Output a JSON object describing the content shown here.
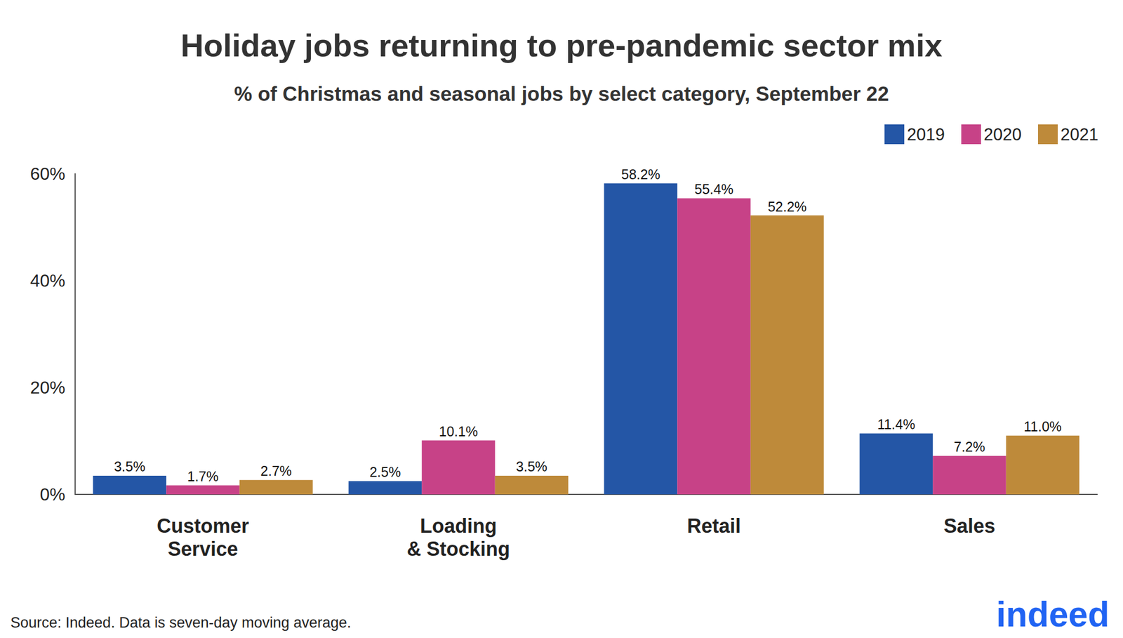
{
  "chart_data": {
    "type": "bar",
    "title": "Holiday jobs returning to pre-pandemic sector mix",
    "subtitle": "% of Christmas and seasonal jobs by select category, September 22",
    "source": "Source: Indeed. Data is seven-day moving average.",
    "logo": "indeed",
    "categories": [
      "Customer\nService",
      "Loading\n& Stocking",
      "Retail",
      "Sales"
    ],
    "series": [
      {
        "name": "2019",
        "color": "#2456a6",
        "values": [
          3.5,
          2.5,
          58.2,
          11.4
        ],
        "value_labels": [
          "3.5%",
          "2.5%",
          "58.2%",
          "11.4%"
        ]
      },
      {
        "name": "2020",
        "color": "#c74287",
        "values": [
          1.7,
          10.1,
          55.4,
          7.2
        ],
        "value_labels": [
          "1.7%",
          "10.1%",
          "55.4%",
          "7.2%"
        ]
      },
      {
        "name": "2021",
        "color": "#be8a3a",
        "values": [
          2.7,
          3.5,
          52.2,
          11.0
        ],
        "value_labels": [
          "2.7%",
          "3.5%",
          "52.2%",
          "11.0%"
        ]
      }
    ],
    "ylim": [
      0,
      60
    ],
    "yticks": [
      {
        "value": 0,
        "label": "0%"
      },
      {
        "value": 20,
        "label": "20%"
      },
      {
        "value": 40,
        "label": "40%"
      },
      {
        "value": 60,
        "label": "60%"
      }
    ],
    "grid": false,
    "legend": "top-right",
    "data_labels": true
  }
}
